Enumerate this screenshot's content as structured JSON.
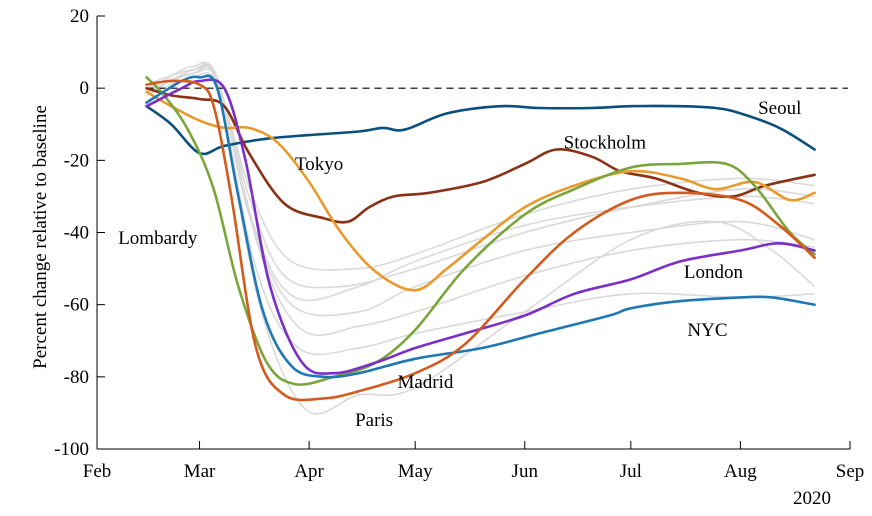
{
  "chart_data": {
    "type": "line",
    "title": "",
    "xlabel": "",
    "ylabel": "Percent change relative to baseline",
    "year_label": "2020",
    "xlim": [
      "2020-02-01",
      "2020-09-01"
    ],
    "ylim": [
      -100,
      20
    ],
    "x_ticks": [
      {
        "date": "2020-02-01",
        "label": "Feb"
      },
      {
        "date": "2020-03-01",
        "label": "Mar"
      },
      {
        "date": "2020-04-01",
        "label": "Apr"
      },
      {
        "date": "2020-05-01",
        "label": "May"
      },
      {
        "date": "2020-06-01",
        "label": "Jun"
      },
      {
        "date": "2020-07-01",
        "label": "Jul"
      },
      {
        "date": "2020-08-01",
        "label": "Aug"
      },
      {
        "date": "2020-09-01",
        "label": "Sep"
      }
    ],
    "y_ticks": [
      {
        "value": 20,
        "label": "20"
      },
      {
        "value": 0,
        "label": "0"
      },
      {
        "value": -20,
        "label": "-20"
      },
      {
        "value": -40,
        "label": "-40"
      },
      {
        "value": -60,
        "label": "-60"
      },
      {
        "value": -80,
        "label": "-80"
      },
      {
        "value": -100,
        "label": "-100"
      }
    ],
    "baseline": 0,
    "grid": false,
    "legend": "none",
    "background_color": "#d9d9d9",
    "background_series": [
      [
        [
          "2020-02-15",
          -1
        ],
        [
          "2020-02-28",
          4
        ],
        [
          "2020-03-06",
          2
        ],
        [
          "2020-03-15",
          -30
        ],
        [
          "2020-03-25",
          -52
        ],
        [
          "2020-04-10",
          -55
        ],
        [
          "2020-05-01",
          -50
        ],
        [
          "2020-06-01",
          -40
        ],
        [
          "2020-07-01",
          -33
        ],
        [
          "2020-08-01",
          -28
        ],
        [
          "2020-08-22",
          -30
        ]
      ],
      [
        [
          "2020-02-15",
          -2
        ],
        [
          "2020-02-28",
          5
        ],
        [
          "2020-03-06",
          3
        ],
        [
          "2020-03-15",
          -35
        ],
        [
          "2020-03-27",
          -60
        ],
        [
          "2020-04-15",
          -62
        ],
        [
          "2020-05-01",
          -55
        ],
        [
          "2020-06-01",
          -45
        ],
        [
          "2020-07-01",
          -40
        ],
        [
          "2020-08-01",
          -37
        ],
        [
          "2020-08-22",
          -42
        ]
      ],
      [
        [
          "2020-02-15",
          0
        ],
        [
          "2020-02-28",
          4
        ],
        [
          "2020-03-06",
          1
        ],
        [
          "2020-03-17",
          -50
        ],
        [
          "2020-03-29",
          -72
        ],
        [
          "2020-04-15",
          -72
        ],
        [
          "2020-05-01",
          -68
        ],
        [
          "2020-06-01",
          -62
        ],
        [
          "2020-07-01",
          -57
        ],
        [
          "2020-08-01",
          -58
        ],
        [
          "2020-08-22",
          -57
        ]
      ],
      [
        [
          "2020-02-15",
          -1
        ],
        [
          "2020-02-28",
          6
        ],
        [
          "2020-03-06",
          0
        ],
        [
          "2020-03-18",
          -60
        ],
        [
          "2020-03-31",
          -89
        ],
        [
          "2020-04-15",
          -85
        ],
        [
          "2020-05-01",
          -83
        ],
        [
          "2020-06-01",
          -62
        ],
        [
          "2020-07-01",
          -42
        ],
        [
          "2020-07-25",
          -37
        ],
        [
          "2020-08-10",
          -45
        ],
        [
          "2020-08-22",
          -55
        ]
      ],
      [
        [
          "2020-02-15",
          -2
        ],
        [
          "2020-02-28",
          3
        ],
        [
          "2020-03-06",
          1
        ],
        [
          "2020-03-16",
          -30
        ],
        [
          "2020-03-27",
          -48
        ],
        [
          "2020-04-15",
          -50
        ],
        [
          "2020-05-01",
          -46
        ],
        [
          "2020-06-01",
          -35
        ],
        [
          "2020-07-01",
          -28
        ],
        [
          "2020-08-01",
          -25
        ],
        [
          "2020-08-22",
          -27
        ]
      ],
      [
        [
          "2020-02-15",
          1
        ],
        [
          "2020-02-28",
          5
        ],
        [
          "2020-03-06",
          2
        ],
        [
          "2020-03-17",
          -40
        ],
        [
          "2020-03-28",
          -58
        ],
        [
          "2020-04-15",
          -55
        ],
        [
          "2020-05-01",
          -48
        ],
        [
          "2020-06-01",
          -38
        ],
        [
          "2020-07-01",
          -33
        ],
        [
          "2020-08-01",
          -30
        ],
        [
          "2020-08-22",
          -32
        ]
      ],
      [
        [
          "2020-02-15",
          -1
        ],
        [
          "2020-02-28",
          4
        ],
        [
          "2020-03-06",
          2
        ],
        [
          "2020-03-18",
          -45
        ],
        [
          "2020-03-30",
          -67
        ],
        [
          "2020-04-15",
          -66
        ],
        [
          "2020-05-01",
          -62
        ],
        [
          "2020-06-01",
          -52
        ],
        [
          "2020-07-01",
          -45
        ],
        [
          "2020-08-01",
          -42
        ],
        [
          "2020-08-22",
          -44
        ]
      ]
    ],
    "series": [
      {
        "name": "Seoul",
        "color": "#0b4f7c",
        "points": [
          [
            "2020-02-15",
            -5
          ],
          [
            "2020-02-22",
            -10
          ],
          [
            "2020-03-01",
            -18
          ],
          [
            "2020-03-08",
            -16
          ],
          [
            "2020-03-20",
            -14
          ],
          [
            "2020-04-01",
            -13
          ],
          [
            "2020-04-15",
            -12
          ],
          [
            "2020-04-22",
            -11
          ],
          [
            "2020-04-28",
            -11.5
          ],
          [
            "2020-05-10",
            -7
          ],
          [
            "2020-05-25",
            -5
          ],
          [
            "2020-06-05",
            -5.5
          ],
          [
            "2020-06-20",
            -5.5
          ],
          [
            "2020-07-01",
            -5
          ],
          [
            "2020-07-15",
            -5
          ],
          [
            "2020-07-25",
            -5.5
          ],
          [
            "2020-08-01",
            -7
          ],
          [
            "2020-08-12",
            -11
          ],
          [
            "2020-08-22",
            -17
          ]
        ]
      },
      {
        "name": "Stockholm",
        "color": "#8b3216",
        "points": [
          [
            "2020-02-15",
            0
          ],
          [
            "2020-02-22",
            -2
          ],
          [
            "2020-03-01",
            -3
          ],
          [
            "2020-03-08",
            -5
          ],
          [
            "2020-03-15",
            -18
          ],
          [
            "2020-03-25",
            -32
          ],
          [
            "2020-04-05",
            -36
          ],
          [
            "2020-04-12",
            -37
          ],
          [
            "2020-04-18",
            -33
          ],
          [
            "2020-04-25",
            -30
          ],
          [
            "2020-05-05",
            -29
          ],
          [
            "2020-05-20",
            -26
          ],
          [
            "2020-06-01",
            -21
          ],
          [
            "2020-06-10",
            -17
          ],
          [
            "2020-06-20",
            -19
          ],
          [
            "2020-06-28",
            -23
          ],
          [
            "2020-07-08",
            -25
          ],
          [
            "2020-07-20",
            -29
          ],
          [
            "2020-07-30",
            -30
          ],
          [
            "2020-08-08",
            -27
          ],
          [
            "2020-08-22",
            -24
          ]
        ]
      },
      {
        "name": "Tokyo",
        "color": "#ea9a2c",
        "points": [
          [
            "2020-02-15",
            -1
          ],
          [
            "2020-02-22",
            -5
          ],
          [
            "2020-03-01",
            -9
          ],
          [
            "2020-03-08",
            -11
          ],
          [
            "2020-03-15",
            -11
          ],
          [
            "2020-03-23",
            -15
          ],
          [
            "2020-04-01",
            -26
          ],
          [
            "2020-04-10",
            -40
          ],
          [
            "2020-04-20",
            -51
          ],
          [
            "2020-05-01",
            -56
          ],
          [
            "2020-05-10",
            -50
          ],
          [
            "2020-05-20",
            -42
          ],
          [
            "2020-06-01",
            -33
          ],
          [
            "2020-06-15",
            -27
          ],
          [
            "2020-07-01",
            -23
          ],
          [
            "2020-07-15",
            -25
          ],
          [
            "2020-07-25",
            -28
          ],
          [
            "2020-08-05",
            -26
          ],
          [
            "2020-08-15",
            -31
          ],
          [
            "2020-08-22",
            -29
          ]
        ]
      },
      {
        "name": "Lombardy",
        "color": "#7aa53a",
        "points": [
          [
            "2020-02-15",
            3
          ],
          [
            "2020-02-20",
            -2
          ],
          [
            "2020-02-27",
            -12
          ],
          [
            "2020-03-05",
            -28
          ],
          [
            "2020-03-12",
            -55
          ],
          [
            "2020-03-20",
            -76
          ],
          [
            "2020-03-28",
            -82
          ],
          [
            "2020-04-08",
            -80
          ],
          [
            "2020-04-20",
            -76
          ],
          [
            "2020-05-01",
            -67
          ],
          [
            "2020-05-15",
            -50
          ],
          [
            "2020-06-01",
            -35
          ],
          [
            "2020-06-15",
            -28
          ],
          [
            "2020-07-01",
            -22
          ],
          [
            "2020-07-15",
            -21
          ],
          [
            "2020-07-28",
            -21
          ],
          [
            "2020-08-05",
            -27
          ],
          [
            "2020-08-15",
            -40
          ],
          [
            "2020-08-22",
            -46
          ]
        ]
      },
      {
        "name": "London",
        "color": "#7b2fc8",
        "points": [
          [
            "2020-02-15",
            -5
          ],
          [
            "2020-02-25",
            0
          ],
          [
            "2020-03-01",
            2
          ],
          [
            "2020-03-08",
            0
          ],
          [
            "2020-03-14",
            -20
          ],
          [
            "2020-03-21",
            -55
          ],
          [
            "2020-03-30",
            -76
          ],
          [
            "2020-04-08",
            -79
          ],
          [
            "2020-04-20",
            -76
          ],
          [
            "2020-05-01",
            -72
          ],
          [
            "2020-05-15",
            -68
          ],
          [
            "2020-06-01",
            -63
          ],
          [
            "2020-06-15",
            -57
          ],
          [
            "2020-07-01",
            -53
          ],
          [
            "2020-07-15",
            -48
          ],
          [
            "2020-08-01",
            -45
          ],
          [
            "2020-08-12",
            -43
          ],
          [
            "2020-08-22",
            -45
          ]
        ]
      },
      {
        "name": "NYC",
        "color": "#1f77b4",
        "points": [
          [
            "2020-02-15",
            -4
          ],
          [
            "2020-02-25",
            2
          ],
          [
            "2020-03-01",
            3
          ],
          [
            "2020-03-06",
            0
          ],
          [
            "2020-03-12",
            -30
          ],
          [
            "2020-03-19",
            -62
          ],
          [
            "2020-03-27",
            -77
          ],
          [
            "2020-04-05",
            -80
          ],
          [
            "2020-04-15",
            -79
          ],
          [
            "2020-05-01",
            -75
          ],
          [
            "2020-05-20",
            -72
          ],
          [
            "2020-06-05",
            -68
          ],
          [
            "2020-06-25",
            -63
          ],
          [
            "2020-07-01",
            -61
          ],
          [
            "2020-07-15",
            -59
          ],
          [
            "2020-08-01",
            -58
          ],
          [
            "2020-08-10",
            -58
          ],
          [
            "2020-08-22",
            -60
          ]
        ]
      },
      {
        "name": "Paris",
        "color": "#d25b1d",
        "points": [
          [
            "2020-02-15",
            1
          ],
          [
            "2020-02-22",
            2
          ],
          [
            "2020-03-01",
            1
          ],
          [
            "2020-03-05",
            -5
          ],
          [
            "2020-03-10",
            -30
          ],
          [
            "2020-03-17",
            -72
          ],
          [
            "2020-03-25",
            -85
          ],
          [
            "2020-04-05",
            -86
          ],
          [
            "2020-04-15",
            -84
          ],
          [
            "2020-05-01",
            -79
          ],
          [
            "2020-05-15",
            -71
          ],
          [
            "2020-06-01",
            -53
          ],
          [
            "2020-06-15",
            -40
          ],
          [
            "2020-07-01",
            -31
          ],
          [
            "2020-07-15",
            -29
          ],
          [
            "2020-08-01",
            -31
          ],
          [
            "2020-08-12",
            -38
          ],
          [
            "2020-08-22",
            -47
          ]
        ]
      }
    ],
    "annotations": [
      {
        "text": "Seoul",
        "x": "2020-08-06",
        "y": -5.5
      },
      {
        "text": "Stockholm",
        "x": "2020-06-12",
        "y": -15
      },
      {
        "text": "Tokyo",
        "x": "2020-03-28",
        "y": -21
      },
      {
        "text": "Lombardy",
        "x": "2020-02-07",
        "y": -41.5
      },
      {
        "text": "London",
        "x": "2020-07-16",
        "y": -51
      },
      {
        "text": "NYC",
        "x": "2020-07-17",
        "y": -67
      },
      {
        "text": "Madrid",
        "x": "2020-04-26",
        "y": -81.5
      },
      {
        "text": "Paris",
        "x": "2020-04-14",
        "y": -92
      }
    ]
  }
}
